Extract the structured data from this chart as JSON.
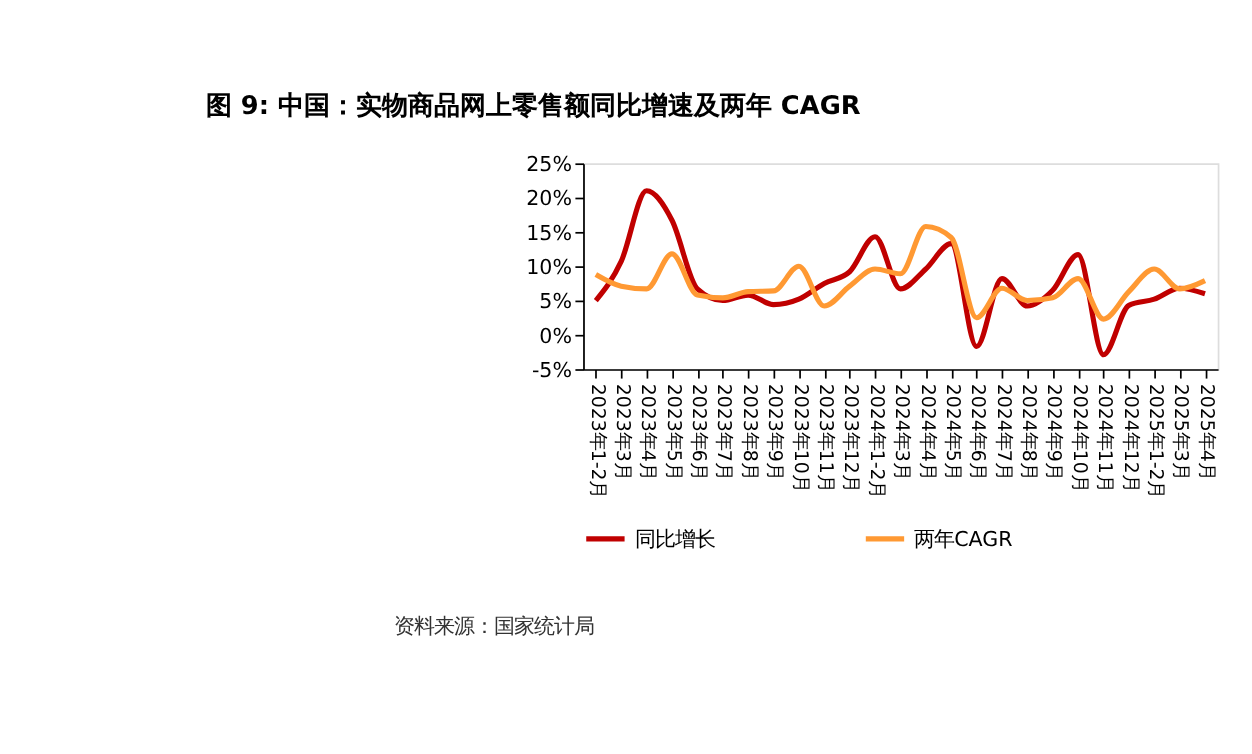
{
  "chart_data": {
    "type": "line",
    "title": "图 9: 中国：实物商品网上零售额同比增速及两年 CAGR",
    "categories": [
      "2023年1-2月",
      "2023年3月",
      "2023年4月",
      "2023年5月",
      "2023年6月",
      "2023年7月",
      "2023年8月",
      "2023年9月",
      "2023年10月",
      "2023年11月",
      "2023年12月",
      "2024年1-2月",
      "2024年3月",
      "2024年4月",
      "2024年5月",
      "2024年6月",
      "2024年7月",
      "2024年8月",
      "2024年9月",
      "2024年10月",
      "2024年11月",
      "2024年12月",
      "2025年1-2月",
      "2025年3月",
      "2025年4月"
    ],
    "series": [
      {
        "name": "同比增长",
        "color": "#c00000",
        "values": [
          5.0,
          10.7,
          21.0,
          16.7,
          6.7,
          5.0,
          5.8,
          4.4,
          5.2,
          7.5,
          9.2,
          14.3,
          6.7,
          9.6,
          13.3,
          -1.7,
          8.2,
          4.2,
          6.5,
          11.7,
          -2.9,
          4.3,
          5.2,
          6.8,
          6.0
        ]
      },
      {
        "name": "两年CAGR",
        "color": "#ff9933",
        "values": [
          8.8,
          7.1,
          6.7,
          11.8,
          5.8,
          5.4,
          6.3,
          6.4,
          10.0,
          4.2,
          7.1,
          9.6,
          8.9,
          15.8,
          14.2,
          2.5,
          6.8,
          5.0,
          5.4,
          8.2,
          2.3,
          6.3,
          9.6,
          6.7,
          7.9
        ]
      }
    ],
    "ylim": [
      -5,
      25
    ],
    "yticks": [
      {
        "value": -5,
        "label": "-5%"
      },
      {
        "value": 0,
        "label": "0%"
      },
      {
        "value": 5,
        "label": "5%"
      },
      {
        "value": 10,
        "label": "10%"
      },
      {
        "value": 15,
        "label": "15%"
      },
      {
        "value": 20,
        "label": "20%"
      },
      {
        "value": 25,
        "label": "25%"
      }
    ],
    "grid": false,
    "legend": "bottom",
    "line_style": "solid",
    "marker": "none",
    "annotations": [
      "资料来源：国家统计局"
    ]
  }
}
